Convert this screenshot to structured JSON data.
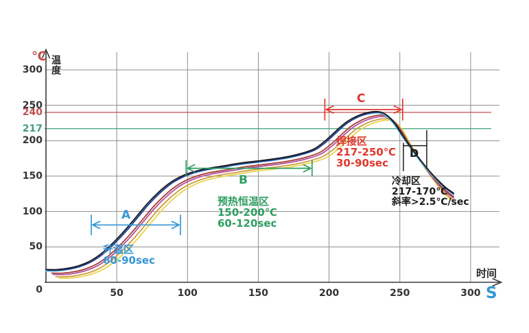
{
  "figure": {
    "y_axis_unit": "℃",
    "y_axis_title": "温度",
    "x_axis_title": "时间",
    "x_axis_unit": "S"
  },
  "colors": {
    "grid": "#8c8c8c",
    "axis": "#3a3a3a",
    "tick_text": "#333333",
    "ref_240": "#c0504d",
    "ref_217": "#3f9e7c",
    "zone_a_blue": "#3496d4",
    "zone_b_green": "#2d9e60",
    "zone_c_red": "#e0372c",
    "zone_d_black": "#1a1a1a"
  },
  "chart_data": {
    "type": "line",
    "title": "",
    "x_title": "时间",
    "x_unit": "S",
    "y_title": "温度",
    "y_unit": "℃",
    "xlim": [
      0,
      322
    ],
    "ylim": [
      0,
      326
    ],
    "grid": true,
    "x_ticks": [
      50,
      100,
      150,
      200,
      250,
      300
    ],
    "y_ticks": [
      0,
      50,
      100,
      150,
      200,
      250,
      300
    ],
    "reference_lines": [
      {
        "y": 240,
        "label": "240",
        "color": "#c0504d"
      },
      {
        "y": 217,
        "label": "217",
        "color": "#3f9e7c"
      }
    ],
    "base_curve_points": [
      [
        0,
        15
      ],
      [
        8,
        15
      ],
      [
        16,
        17
      ],
      [
        24,
        21
      ],
      [
        32,
        28
      ],
      [
        40,
        39
      ],
      [
        48,
        54
      ],
      [
        56,
        71
      ],
      [
        64,
        90
      ],
      [
        72,
        109
      ],
      [
        80,
        125
      ],
      [
        88,
        138
      ],
      [
        96,
        147
      ],
      [
        104,
        153
      ],
      [
        112,
        157
      ],
      [
        124,
        161
      ],
      [
        136,
        165
      ],
      [
        148,
        168
      ],
      [
        160,
        171
      ],
      [
        172,
        175
      ],
      [
        182,
        180
      ],
      [
        190,
        186
      ],
      [
        198,
        198
      ],
      [
        205,
        211
      ],
      [
        212,
        223
      ],
      [
        220,
        232
      ],
      [
        228,
        237
      ],
      [
        235,
        238
      ],
      [
        240,
        234
      ],
      [
        246,
        222
      ],
      [
        252,
        204
      ],
      [
        258,
        187
      ],
      [
        264,
        171
      ],
      [
        271,
        154
      ],
      [
        277,
        141
      ],
      [
        283,
        130
      ],
      [
        288,
        123
      ]
    ],
    "series": [
      {
        "name": "profile-yellow",
        "color": "#e7d44b",
        "dt": 9,
        "dT": -9
      },
      {
        "name": "profile-orange",
        "color": "#d09a3e",
        "dt": 7,
        "dT": -7
      },
      {
        "name": "profile-magenta",
        "color": "#b0509c",
        "dt": 5,
        "dT": -4
      },
      {
        "name": "profile-maroon",
        "color": "#a83a36",
        "dt": 4,
        "dT": -2
      },
      {
        "name": "profile-cyan",
        "color": "#55c3e6",
        "dt": 0,
        "dT": 1
      },
      {
        "name": "profile-navy",
        "color": "#2c3a8e",
        "dt": 1,
        "dT": 2
      },
      {
        "name": "profile-black",
        "color": "#1d1d1d",
        "dt": 0,
        "dT": 3
      }
    ],
    "annotations": [
      {
        "label": "A",
        "zone": "升温区",
        "spec": [
          "60-90sec"
        ],
        "t1": 32,
        "t2": 95,
        "T": 81,
        "color": "#3496d4"
      },
      {
        "label": "B",
        "zone": "预热恒温区",
        "spec": [
          "150-200℃",
          "60-120sec"
        ],
        "t1": 99,
        "t2": 188,
        "T": 161,
        "color": "#2d9e60"
      },
      {
        "label": "C",
        "zone": "焊接区",
        "spec": [
          "217-250℃",
          "30-90sec"
        ],
        "t1": 197,
        "t2": 252,
        "T": 244,
        "color": "#e0372c"
      },
      {
        "label": "D",
        "zone": "冷却区",
        "spec": [
          "217-170℃",
          "斜率>2.5℃/sec"
        ],
        "marker": {
          "t1": 252.5,
          "t2": 269,
          "bar1_T": [
            197,
            157
          ],
          "bar2_T": [
            215,
            160
          ],
          "mid_T": 193
        },
        "color": "#1a1a1a"
      }
    ]
  }
}
